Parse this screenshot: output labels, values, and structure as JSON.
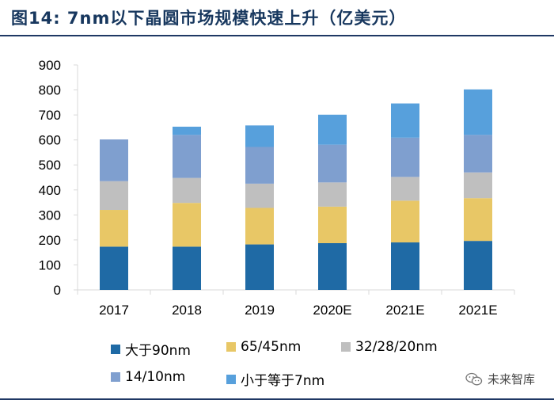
{
  "title": "图14:  7nm以下晶圆市场规模快速上升（亿美元）",
  "watermark": {
    "text": "未来智库",
    "icon": "wechat-icon"
  },
  "colors": {
    "title": "#17375e",
    "rule": "#1f3864",
    "axis": "#d9d9d9"
  },
  "chart_data": {
    "type": "bar",
    "stacked": true,
    "title": "7nm以下晶圆市场规模快速上升（亿美元）",
    "categories": [
      "2017",
      "2018",
      "2019",
      "2020E",
      "2021E",
      "2021E"
    ],
    "ylim": [
      0,
      900
    ],
    "yticks": [
      0,
      100,
      200,
      300,
      400,
      500,
      600,
      700,
      800,
      900
    ],
    "xlabel": "",
    "ylabel": "",
    "grid": false,
    "legend_position": "bottom",
    "series": [
      {
        "name": "大于90nm",
        "color": "#1f6aa5",
        "values": [
          173,
          173,
          182,
          187,
          190,
          196
        ]
      },
      {
        "name": "65/45nm",
        "color": "#e8c766",
        "values": [
          147,
          175,
          146,
          146,
          167,
          171
        ]
      },
      {
        "name": "32/28/20nm",
        "color": "#bfbfbf",
        "values": [
          115,
          100,
          97,
          97,
          95,
          103
        ]
      },
      {
        "name": "14/10nm",
        "color": "#7f9fcf",
        "values": [
          167,
          172,
          147,
          151,
          157,
          150
        ]
      },
      {
        "name": "小于等于7nm",
        "color": "#57a0dc",
        "values": [
          0,
          33,
          86,
          120,
          137,
          182
        ]
      }
    ]
  }
}
